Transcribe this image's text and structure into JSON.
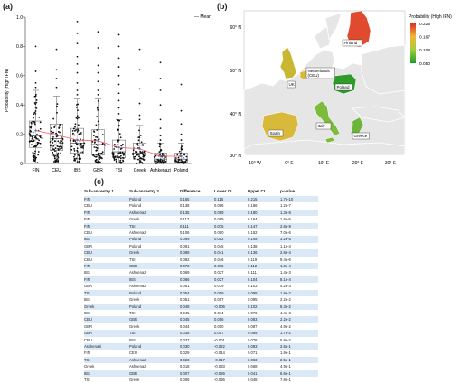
{
  "panels": {
    "a": "(a)",
    "b": "(b)",
    "c": "(c)"
  },
  "chart_data": [
    {
      "type": "scatter",
      "title": "",
      "xlabel": "",
      "ylabel": "Probability (High IFN)",
      "ylim": [
        0,
        1.0
      ],
      "yticks": [
        "0",
        "0.2",
        "0.4",
        "0.6",
        "0.8",
        "1.0"
      ],
      "categories": [
        "FIN",
        "CEU",
        "IBS",
        "GBR",
        "TSI",
        "Greek",
        "Ashkenazi",
        "Poland"
      ],
      "legend": "— Mean",
      "mean": [
        0.225,
        0.195,
        0.16,
        0.155,
        0.11,
        0.1,
        0.05,
        0.05
      ],
      "box": [
        {
          "q1": 0.11,
          "median": 0.19,
          "q3": 0.29,
          "whisker_low": 0.0,
          "whisker_high": 0.5
        },
        {
          "q1": 0.09,
          "median": 0.17,
          "q3": 0.27,
          "whisker_low": 0.0,
          "whisker_high": 0.46
        },
        {
          "q1": 0.07,
          "median": 0.14,
          "q3": 0.24,
          "whisker_low": 0.0,
          "whisker_high": 0.44
        },
        {
          "q1": 0.06,
          "median": 0.13,
          "q3": 0.23,
          "whisker_low": 0.0,
          "whisker_high": 0.44
        },
        {
          "q1": 0.04,
          "median": 0.08,
          "q3": 0.16,
          "whisker_low": 0.0,
          "whisker_high": 0.3
        },
        {
          "q1": 0.03,
          "median": 0.07,
          "q3": 0.14,
          "whisker_low": 0.0,
          "whisker_high": 0.26
        },
        {
          "q1": 0.01,
          "median": 0.03,
          "q3": 0.07,
          "whisker_low": 0.0,
          "whisker_high": 0.14
        },
        {
          "q1": 0.01,
          "median": 0.03,
          "q3": 0.07,
          "whisker_low": 0.0,
          "whisker_high": 0.14
        }
      ],
      "outliers": [
        [
          0.8,
          0.63,
          0.55,
          0.52
        ],
        [
          0.78,
          0.64,
          0.58,
          0.52
        ],
        [
          0.97,
          0.89,
          0.82,
          0.73,
          0.68,
          0.62,
          0.55,
          0.5,
          0.47
        ],
        [
          0.9,
          0.79,
          0.67,
          0.62,
          0.56,
          0.5,
          0.47
        ],
        [
          0.88,
          0.8,
          0.72,
          0.66,
          0.6,
          0.54,
          0.48,
          0.43,
          0.38,
          0.34
        ],
        [
          0.78,
          0.64,
          0.51,
          0.41,
          0.33,
          0.3
        ],
        [
          0.69,
          0.58,
          0.5,
          0.4,
          0.3,
          0.24,
          0.19,
          0.16
        ],
        [
          0.54,
          0.36,
          0.27,
          0.2,
          0.16
        ]
      ]
    },
    {
      "type": "heatmap",
      "title": "",
      "legend_title": "Probability (High IFN)",
      "colorbar_ticks": [
        "0.225",
        "0.167",
        "0.108",
        "0.050"
      ],
      "colorbar_range": [
        0.05,
        0.225
      ],
      "lat_ticks": [
        "60° N",
        "50° N",
        "40° N",
        "30° N"
      ],
      "lon_ticks": [
        "10° W",
        "0° E",
        "10° E",
        "20° E",
        "30° E"
      ],
      "regions": [
        {
          "name": "Finland",
          "value": 0.225,
          "color": "#e04a2e"
        },
        {
          "name": "UK",
          "value": 0.155,
          "color": "#c9b633"
        },
        {
          "name": "Netherlands (CEU)",
          "value": 0.195,
          "color": "#d7b93a"
        },
        {
          "name": "Poland",
          "value": 0.05,
          "color": "#2e9b2a"
        },
        {
          "name": "Spain",
          "value": 0.16,
          "color": "#d9b93a"
        },
        {
          "name": "Italy",
          "value": 0.11,
          "color": "#7dbb3a"
        },
        {
          "name": "Greece",
          "value": 0.1,
          "color": "#6cb53a"
        }
      ],
      "colors": {
        "high": "#d73027",
        "mid_high": "#f2b53a",
        "mid_low": "#a3cf3a",
        "low": "#1a9a2a",
        "land": "#e8e8e8",
        "border": "#ffffff"
      }
    }
  ],
  "table": {
    "headers": [
      "Sub-ancestry 1",
      "Sub-ancestry 2",
      "Difference",
      "Lower CL",
      "Upper CL",
      "p-value"
    ],
    "rows": [
      [
        "FIN",
        "Poland",
        "0.165",
        "0.115",
        "0.215",
        "1.7e-10"
      ],
      [
        "CEU",
        "Poland",
        "0.136",
        "0.086",
        "0.186",
        "1.2e-7"
      ],
      [
        "FIN",
        "Ashkenazi",
        "0.135",
        "0.089",
        "0.180",
        "1.3e-8"
      ],
      [
        "FIN",
        "Greek",
        "0.117",
        "0.069",
        "0.164",
        "1.6e-6"
      ],
      [
        "FIN",
        "TSI",
        "0.111",
        "0.075",
        "0.147",
        "2.8e-9"
      ],
      [
        "CEU",
        "Ashkenazi",
        "0.106",
        "0.060",
        "0.152",
        "7.0e-6"
      ],
      [
        "IBS",
        "Poland",
        "0.099",
        "0.052",
        "0.145",
        "3.2e-5"
      ],
      [
        "GBR",
        "Poland",
        "0.091",
        "0.045",
        "0.138",
        "1.1e-4"
      ],
      [
        "CEU",
        "Greek",
        "0.088",
        "0.041",
        "0.136",
        "2.8e-4"
      ],
      [
        "CEU",
        "TSI",
        "0.082",
        "0.046",
        "0.119",
        "9.4e-6"
      ],
      [
        "FIN",
        "GBR",
        "0.073",
        "0.035",
        "0.112",
        "1.8e-4"
      ],
      [
        "IBS",
        "Ashkenazi",
        "0.069",
        "0.027",
        "0.111",
        "1.4e-3"
      ],
      [
        "FIN",
        "IBS",
        "0.066",
        "0.027",
        "0.104",
        "8.1e-4"
      ],
      [
        "GBR",
        "Ashkenazi",
        "0.061",
        "0.019",
        "0.103",
        "4.2e-3"
      ],
      [
        "TSI",
        "Poland",
        "0.054",
        "0.009",
        "0.098",
        "1.8e-2"
      ],
      [
        "IBS",
        "Greek",
        "0.051",
        "0.007",
        "0.095",
        "2.2e-2"
      ],
      [
        "Greek",
        "Poland",
        "0.048",
        "-0.006",
        "0.102",
        "8.3e-2"
      ],
      [
        "IBS",
        "TSI",
        "0.045",
        "0.014",
        "0.076",
        "4.4e-3"
      ],
      [
        "CEU",
        "GBR",
        "0.045",
        "0.006",
        "0.083",
        "2.2e-2"
      ],
      [
        "GBR",
        "Greek",
        "0.044",
        "0.000",
        "0.087",
        "4.9e-2"
      ],
      [
        "GBR",
        "TSI",
        "0.038",
        "0.007",
        "0.069",
        "1.7e-2"
      ],
      [
        "CEU",
        "IBS",
        "0.037",
        "-0.001",
        "0.076",
        "5.8e-2"
      ],
      [
        "Ashkenazi",
        "Poland",
        "0.030",
        "-0.022",
        "0.083",
        "2.6e-1"
      ],
      [
        "FIN",
        "CEU",
        "0.029",
        "-0.014",
        "0.071",
        "1.9e-1"
      ],
      [
        "TSI",
        "Ashkenazi",
        "0.023",
        "-0.017",
        "0.063",
        "2.5e-1"
      ],
      [
        "Greek",
        "Ashkenazi",
        "0.018",
        "-0.033",
        "0.068",
        "4.9e-1"
      ],
      [
        "IBS",
        "GBR",
        "0.007",
        "-0.026",
        "0.041",
        "6.6e-1"
      ],
      [
        "TSI",
        "Greek",
        "0.006",
        "-0.036",
        "0.048",
        "7.8e-1"
      ]
    ]
  }
}
